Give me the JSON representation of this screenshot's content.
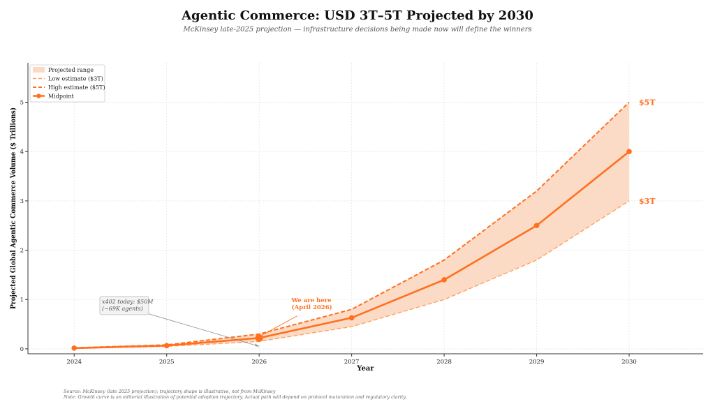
{
  "chart_data": {
    "type": "area",
    "title": "Agentic Commerce: USD 3T–5T Projected by 2030",
    "subtitle": "McKinsey late-2025 projection — infrastructure decisions being made now will define the winners",
    "xlabel": "Year",
    "ylabel": "Projected Global Agentic Commerce Volume ($ Trillions)",
    "x": [
      2024,
      2025,
      2026,
      2027,
      2028,
      2029,
      2030
    ],
    "xlim": [
      2023.5,
      2030.8
    ],
    "ylim": [
      -0.1,
      5.8
    ],
    "x_ticks": [
      2024,
      2025,
      2026,
      2027,
      2028,
      2029,
      2030
    ],
    "y_ticks": [
      0,
      1,
      2,
      3,
      4,
      5
    ],
    "grid": true,
    "legend_placement": "top-left",
    "series": [
      {
        "name": "Low estimate ($3T)",
        "style": "dashed",
        "values": [
          0.01,
          0.05,
          0.15,
          0.45,
          1.0,
          1.8,
          3.0
        ]
      },
      {
        "name": "High estimate ($5T)",
        "style": "dashed",
        "values": [
          0.02,
          0.08,
          0.3,
          0.8,
          1.8,
          3.2,
          5.0
        ]
      },
      {
        "name": "Midpoint",
        "style": "solid-markers",
        "values": [
          0.015,
          0.065,
          0.22,
          0.63,
          1.4,
          2.5,
          4.0
        ]
      }
    ],
    "range_band": {
      "name": "Projected range",
      "lower": "Low estimate ($3T)",
      "upper": "High estimate ($5T)"
    },
    "end_labels": [
      {
        "text": "$5T",
        "x": 2030,
        "y": 5.0
      },
      {
        "text": "$3T",
        "x": 2030,
        "y": 3.0
      }
    ],
    "highlight_point": {
      "x": 2026,
      "y": 0.22
    },
    "annotations": [
      {
        "id": "x402",
        "lines": [
          "x402 today: $50M",
          "(~69K agents)"
        ],
        "x": 2024.3,
        "y": 0.92,
        "arrow_to": [
          2026,
          0.05
        ]
      },
      {
        "id": "here",
        "lines": [
          "We are here",
          "(April 2026)"
        ],
        "x": 2026.35,
        "y": 0.95,
        "arrow_to": [
          2026,
          0.22
        ]
      }
    ],
    "colors": {
      "accent": "#ff6f1e",
      "light": "#ffa060",
      "band": "#fcd9c3",
      "grid": "#dddddd",
      "axis": "#333333"
    }
  },
  "footer": {
    "source": "Source: McKinsey (late 2025 projection); trajectory shape is illustrative, not from McKinsey",
    "note": "Note: Growth curve is an editorial illustration of potential adoption trajectory. Actual path will depend on protocol maturation and regulatory clarity."
  }
}
